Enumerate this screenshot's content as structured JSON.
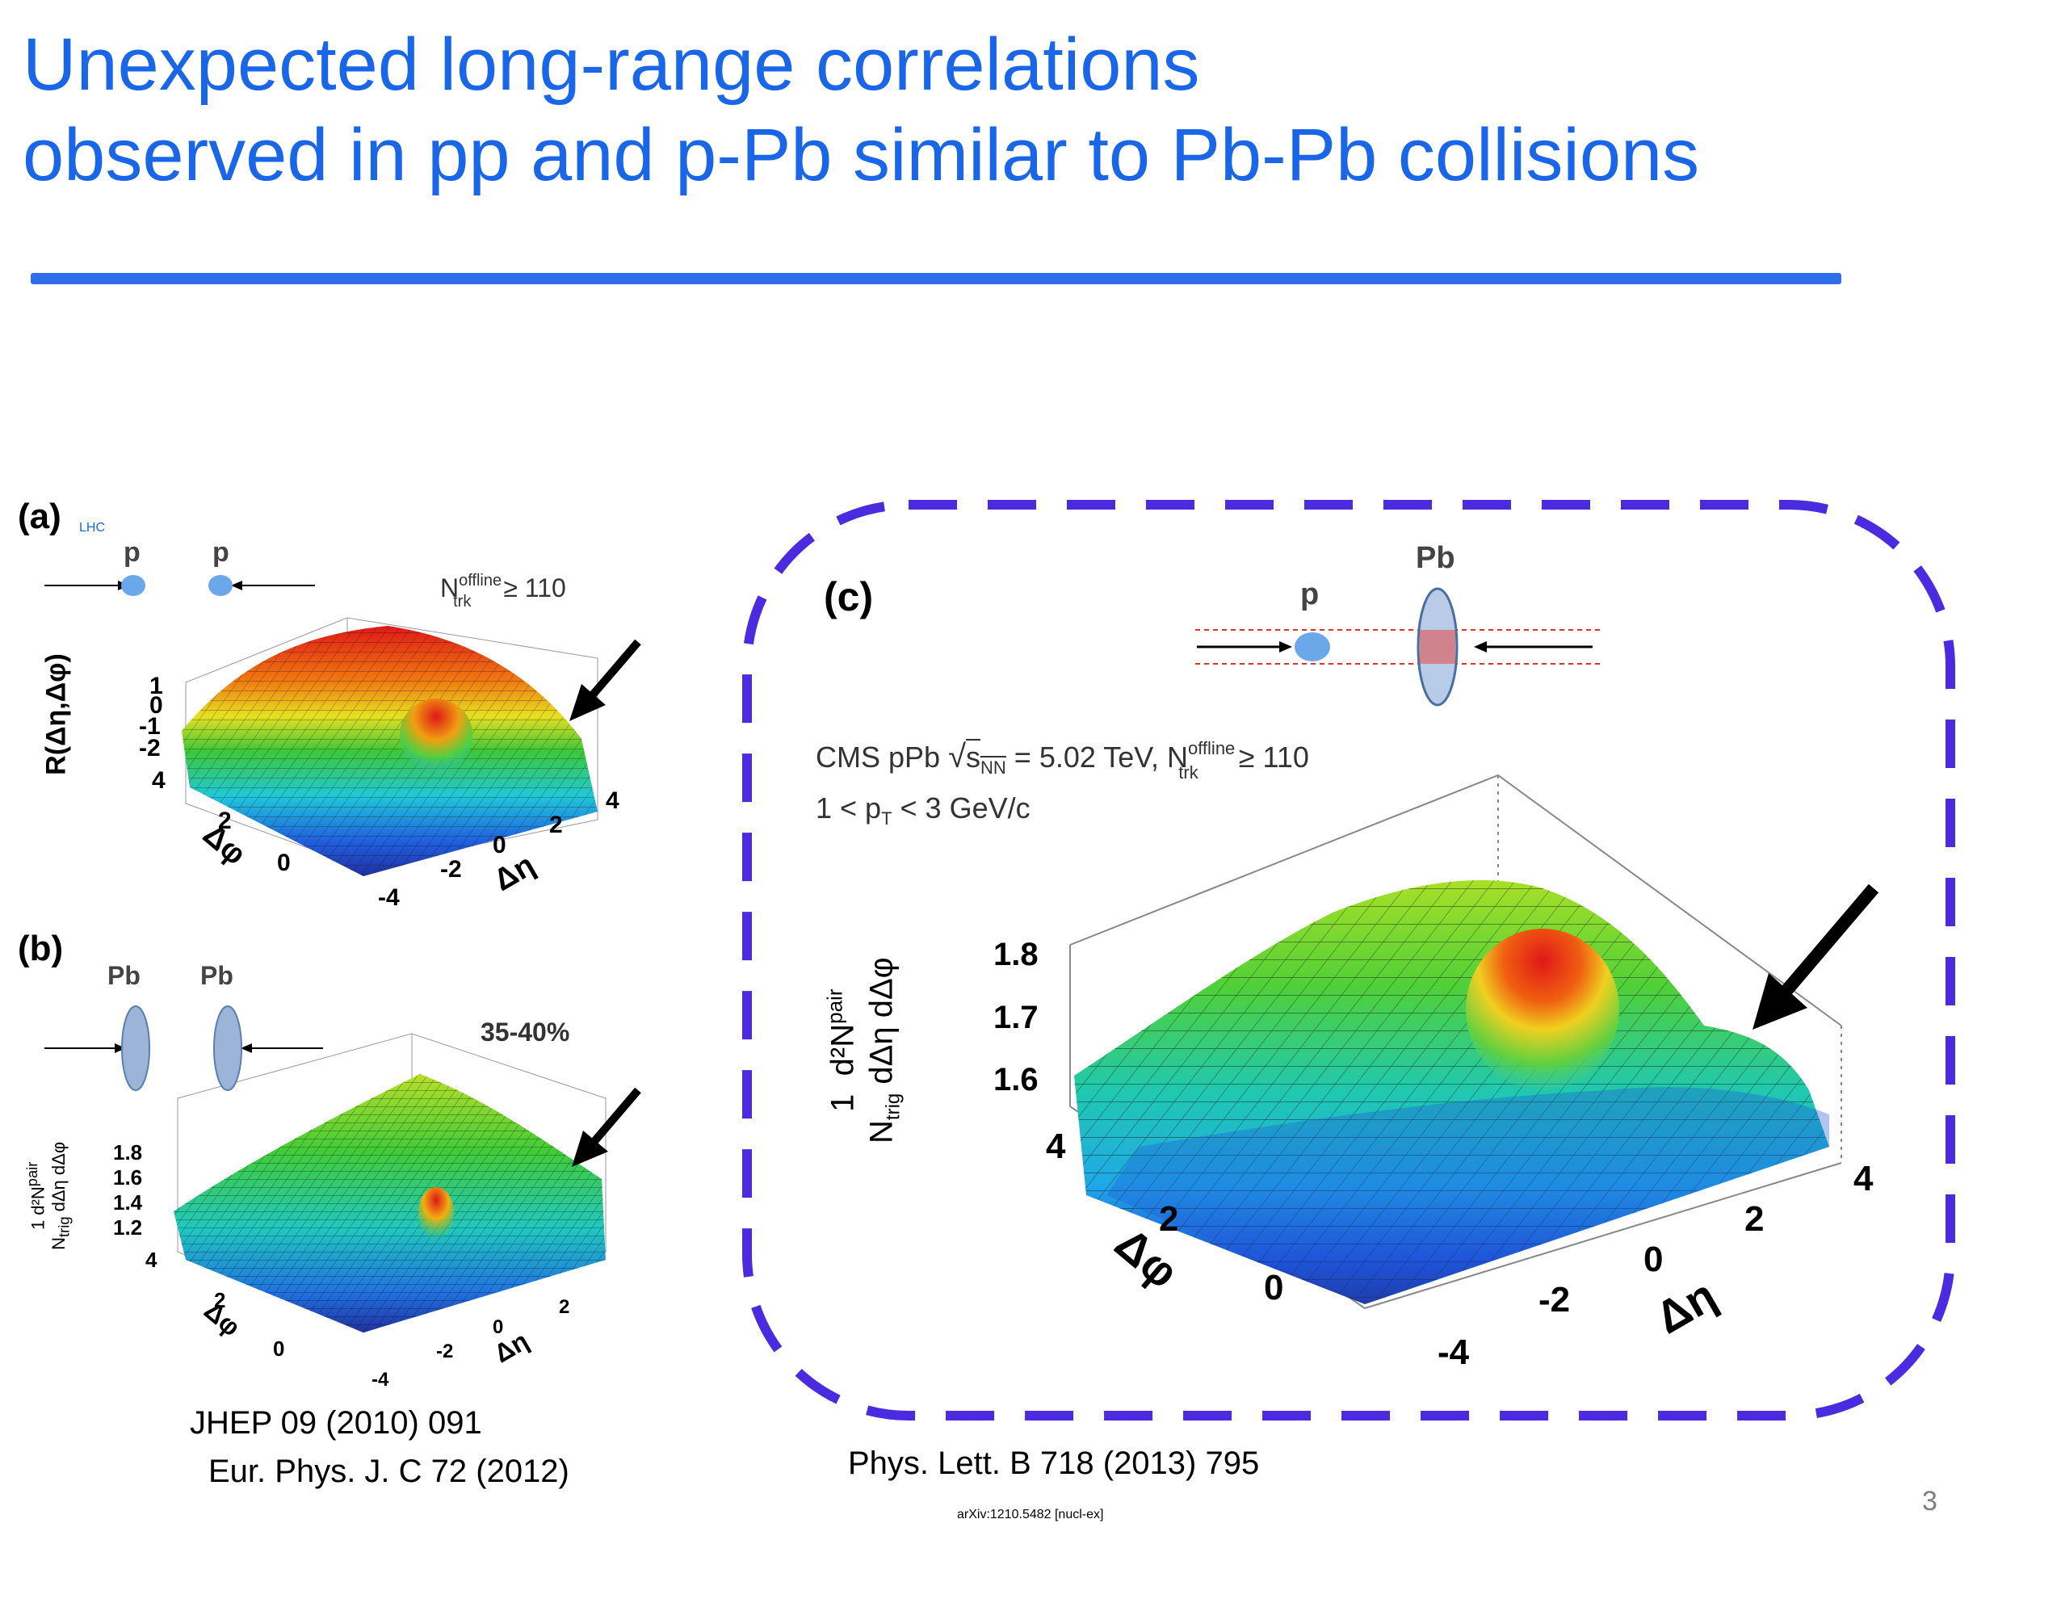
{
  "slide": {
    "title_line1": "Unexpected long-range correlations",
    "title_line2": "observed in pp and p-Pb  similar to Pb-Pb collisions",
    "page_number": "3",
    "accent_color": "#1a66e8",
    "box_color": "#4b2be0"
  },
  "panel_a": {
    "tag": "(a)",
    "lhc": "LHC",
    "particle_left": "p",
    "particle_right": "p",
    "cut_N": "N",
    "cut_sup": "offline",
    "cut_sub": "trk",
    "cut_rest": "≥ 110",
    "zlabel": "R(Δη,Δφ)",
    "zticks": [
      "1",
      "0",
      "-1",
      "-2"
    ],
    "phi_label": "Δφ",
    "phi_ticks": [
      "4",
      "2",
      "0"
    ],
    "eta_label": "Δη",
    "eta_ticks": [
      "-4",
      "-2",
      "0",
      "2",
      "4"
    ]
  },
  "panel_b": {
    "tag": "(b)",
    "particle_left": "Pb",
    "particle_right": "Pb",
    "centrality": "35-40%",
    "zlabel_num": "1   d²N",
    "zlabel_sup": "pair",
    "zlabel_den": "N",
    "zlabel_den_sub": "trig",
    "zlabel_den_rest": " dΔη dΔφ",
    "zticks": [
      "1.8",
      "1.6",
      "1.4",
      "1.2"
    ],
    "phi_label": "Δφ",
    "phi_ticks": [
      "4",
      "2",
      "0"
    ],
    "eta_label": "Δη",
    "eta_ticks": [
      "-4",
      "-2",
      "0",
      "2"
    ]
  },
  "panel_c": {
    "tag": "(c)",
    "particle_left": "p",
    "particle_right": "Pb",
    "line1_a": "CMS pPb ",
    "line1_sqrt": "s",
    "line1_sub": "NN",
    "line1_b": " = 5.02 TeV, N",
    "line1_sup": "offline",
    "line1_sub2": "trk",
    "line1_c": " ≥ 110",
    "line2_a": "1 < p",
    "line2_sub": "T",
    "line2_b": " < 3 GeV/c",
    "zlabel_num": "1",
    "zlabel_num2": "d²N",
    "zlabel_sup": "pair",
    "zlabel_den": "N",
    "zlabel_den_sub": "trig",
    "zlabel_den_rest": " dΔη dΔφ",
    "zticks": [
      "1.8",
      "1.7",
      "1.6"
    ],
    "phi_label": "Δφ",
    "phi_ticks": [
      "4",
      "2",
      "0"
    ],
    "eta_label": "Δη",
    "eta_ticks": [
      "-4",
      "-2",
      "0",
      "2",
      "4"
    ]
  },
  "refs": {
    "ref1": "JHEP 09 (2010) 091",
    "ref2": "Eur. Phys. J. C 72 (2012)",
    "ref3": "Phys. Lett. B 718 (2013) 795",
    "ref4": "arXiv:1210.5482 [nucl-ex]"
  }
}
